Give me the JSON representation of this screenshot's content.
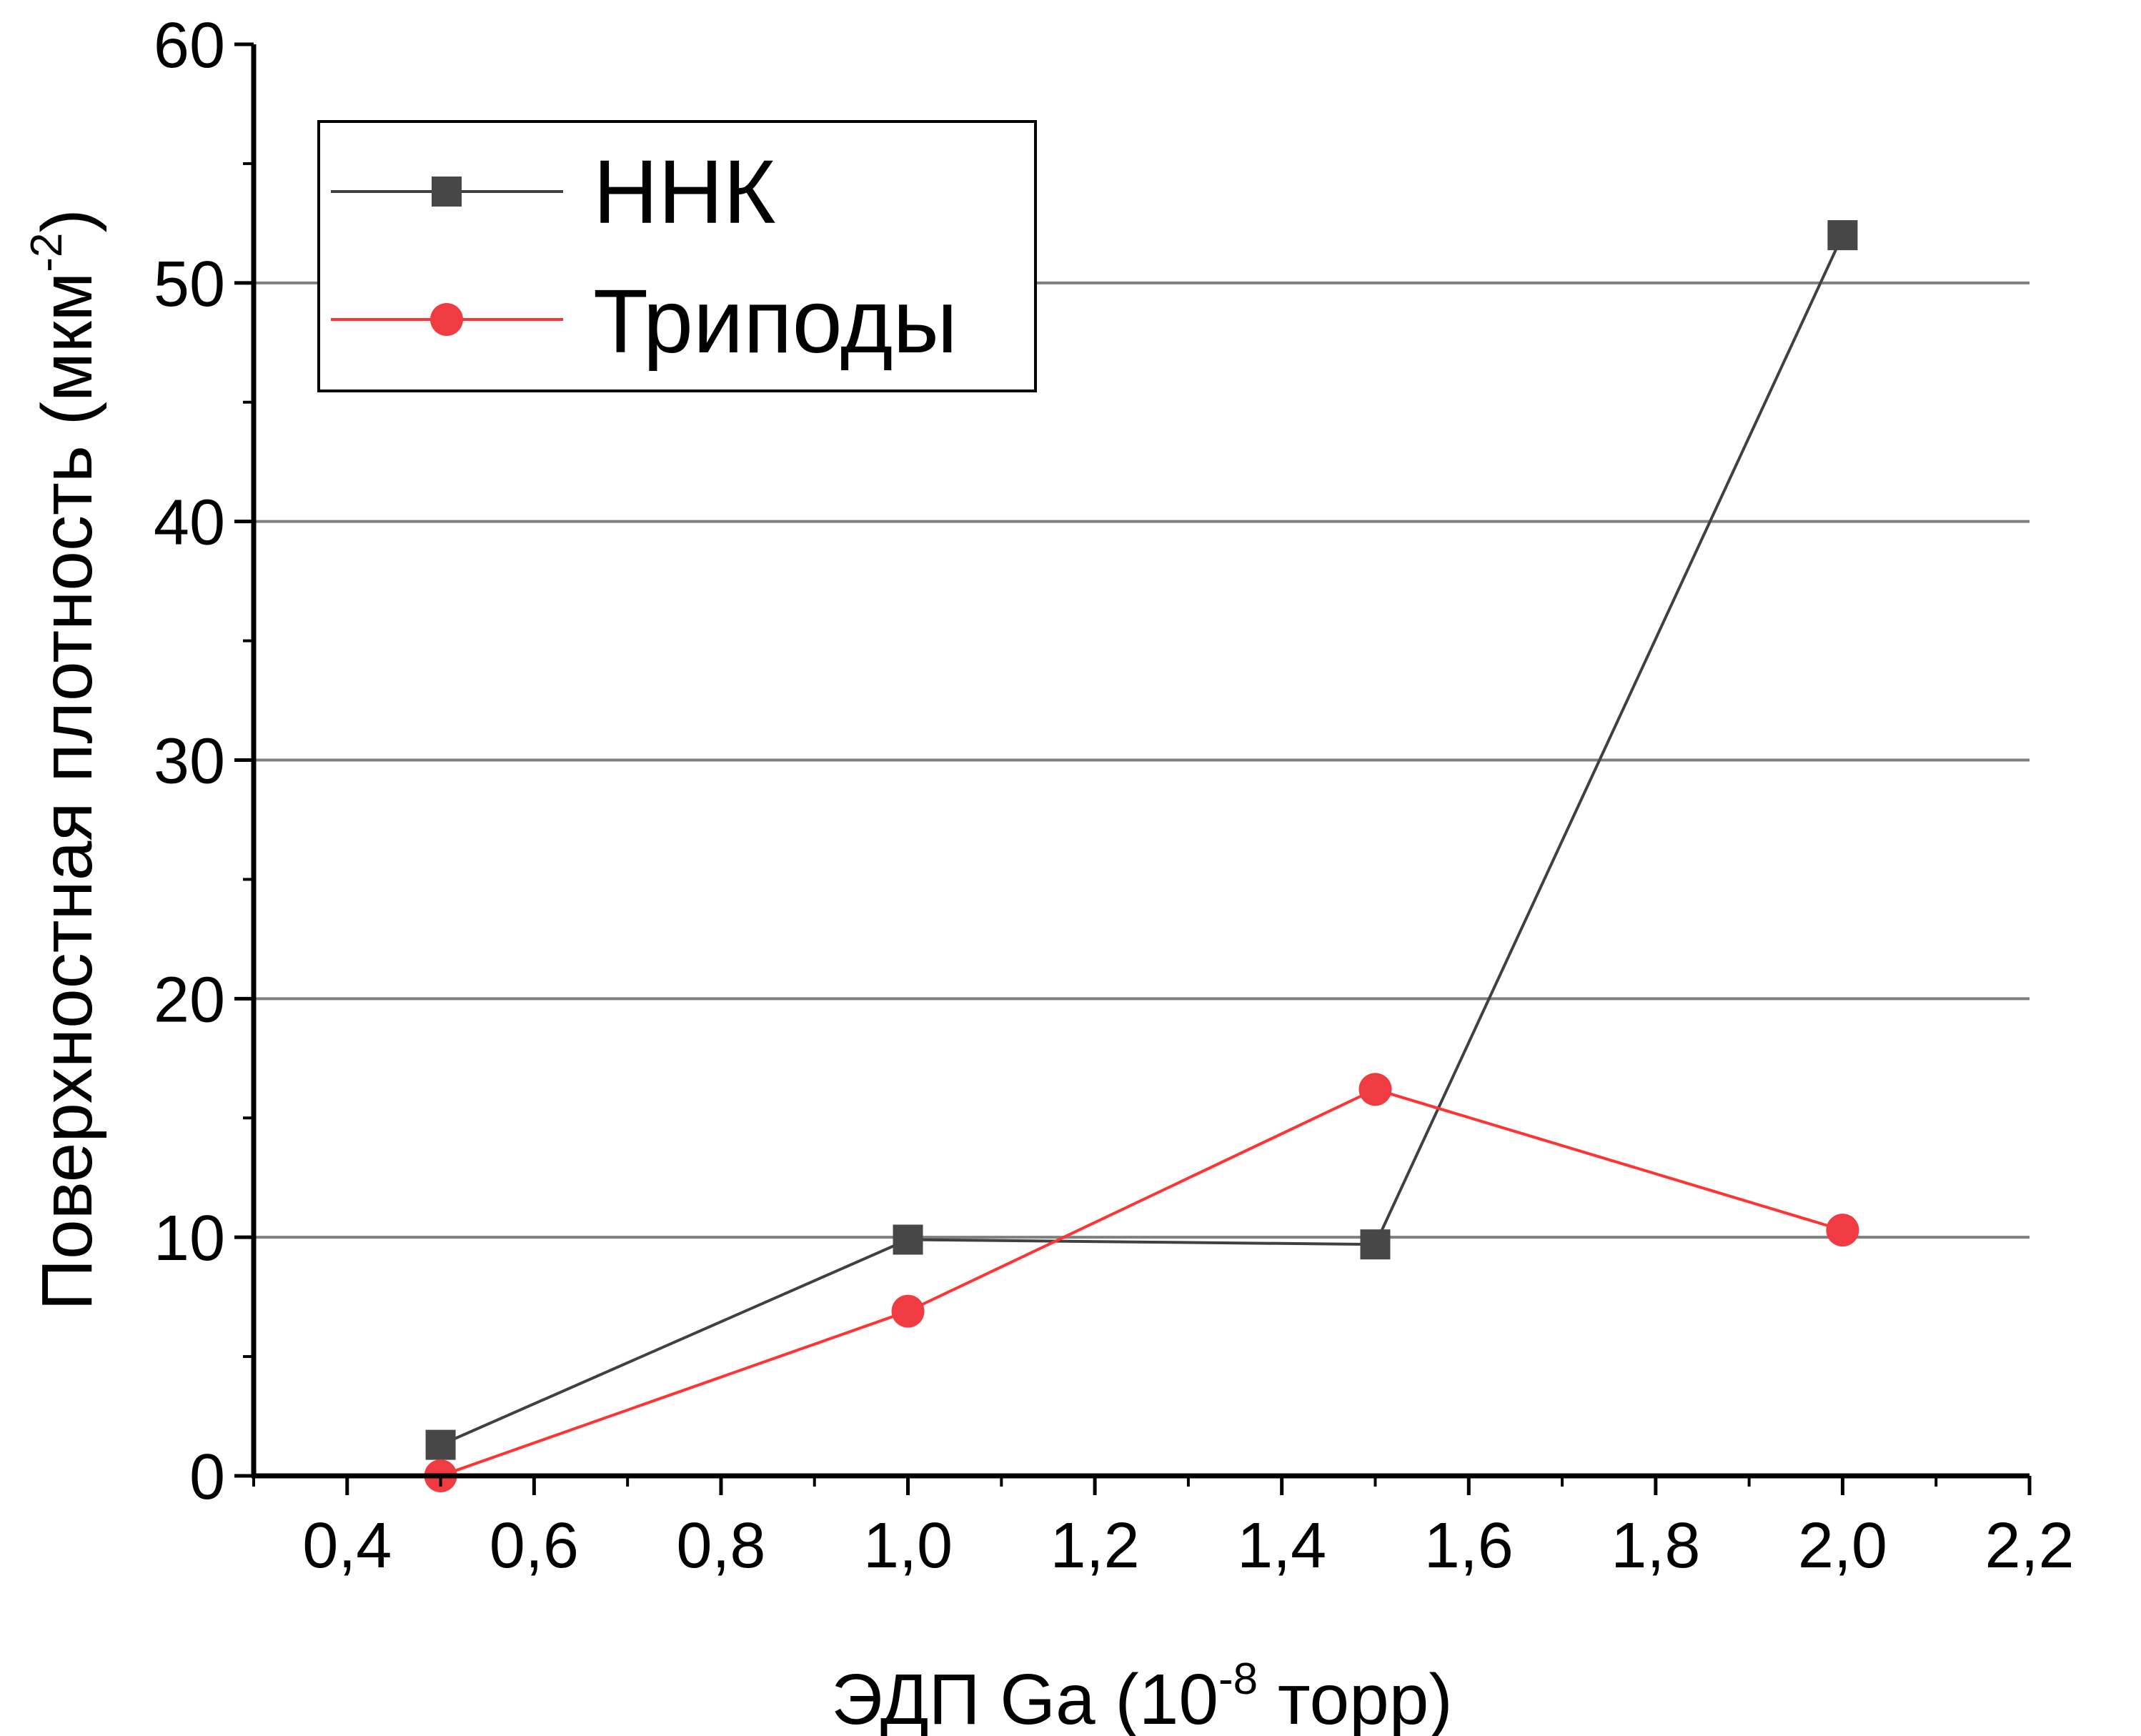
{
  "chart_data": {
    "type": "line",
    "xlabel": {
      "prefix": "ЭДП Ga (10",
      "superscript": "-8",
      "suffix": " торр)"
    },
    "ylabel": {
      "prefix": "Поверхностная плотность (мкм",
      "superscript": "-2",
      "suffix": ")"
    },
    "xlim": [
      0.3,
      2.2
    ],
    "ylim": [
      0,
      60
    ],
    "x_ticks": [
      0.4,
      0.6,
      0.8,
      1.0,
      1.2,
      1.4,
      1.6,
      1.8,
      2.0,
      2.2
    ],
    "x_tick_labels": [
      "0,4",
      "0,6",
      "0,8",
      "1,0",
      "1,2",
      "1,4",
      "1,6",
      "1,8",
      "2,0",
      "2,2"
    ],
    "y_ticks": [
      0,
      10,
      20,
      30,
      40,
      50,
      60
    ],
    "y_tick_labels": [
      "0",
      "10",
      "20",
      "30",
      "40",
      "50",
      "60"
    ],
    "grid": {
      "horizontal": true,
      "values": [
        10,
        20,
        30,
        40,
        50
      ]
    },
    "legend_position": "top-left",
    "series": [
      {
        "name": "ННК",
        "marker": "square",
        "color": "#404040",
        "markerColor": "#474747",
        "x": [
          0.5,
          1.0,
          1.5,
          2.0
        ],
        "y": [
          1.3,
          9.9,
          9.7,
          52.0
        ]
      },
      {
        "name": "Триподы",
        "marker": "circle",
        "color": "#ff3333",
        "markerColor": "#ef3b41",
        "x": [
          0.5,
          1.0,
          1.5,
          2.0
        ],
        "y": [
          0.0,
          6.9,
          16.2,
          10.3
        ]
      }
    ]
  }
}
